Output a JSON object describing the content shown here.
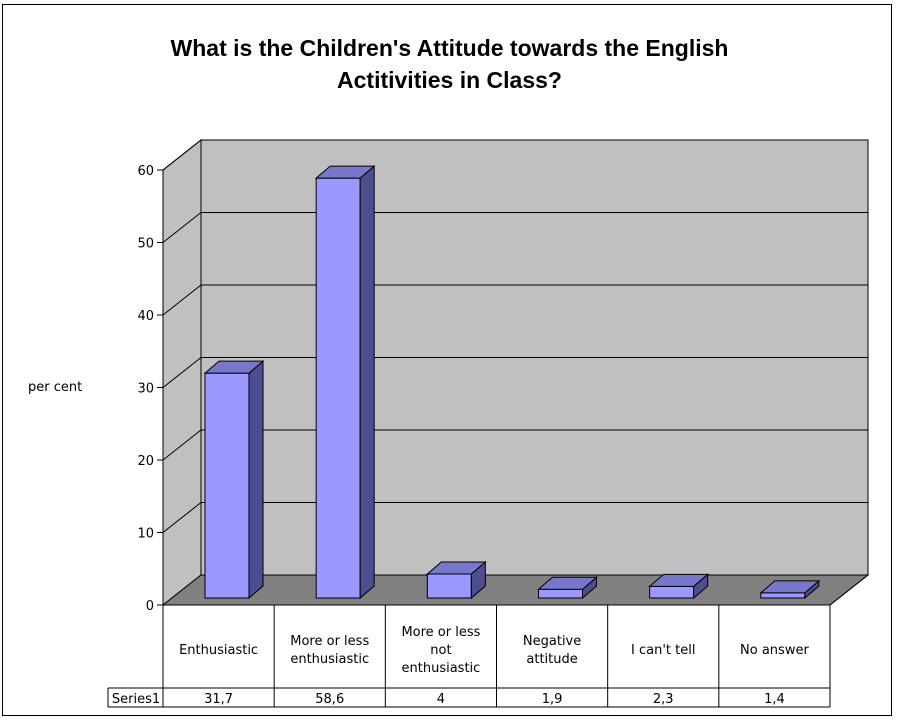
{
  "chart_data": {
    "type": "bar",
    "title_lines": [
      "What is the Children's Attitude towards the English",
      "Actitivities in Class?"
    ],
    "ylabel": "per cent",
    "xlabel": "",
    "ylim": [
      0,
      60
    ],
    "yticks": [
      "0",
      "10",
      "20",
      "30",
      "40",
      "50",
      "60"
    ],
    "categories": [
      [
        "Enthusiastic"
      ],
      [
        "More or less",
        "enthusiastic"
      ],
      [
        "More or less",
        "not",
        "enthusiastic"
      ],
      [
        "Negative",
        "attitude"
      ],
      [
        "I can't tell"
      ],
      [
        "No answer"
      ]
    ],
    "series": [
      {
        "name": "Series1",
        "values": [
          31.7,
          58.6,
          4,
          1.9,
          2.3,
          1.4
        ],
        "labels": [
          "31,7",
          "58,6",
          "4",
          "1,9",
          "2,3",
          "1,4"
        ]
      }
    ],
    "grid": true,
    "data_table": true,
    "colors": {
      "bar_front": "#9999ff",
      "bar_side": "#4d4d8f",
      "bar_top": "#7777cc",
      "wall": "#c0c0c0",
      "floor": "#808080"
    }
  }
}
